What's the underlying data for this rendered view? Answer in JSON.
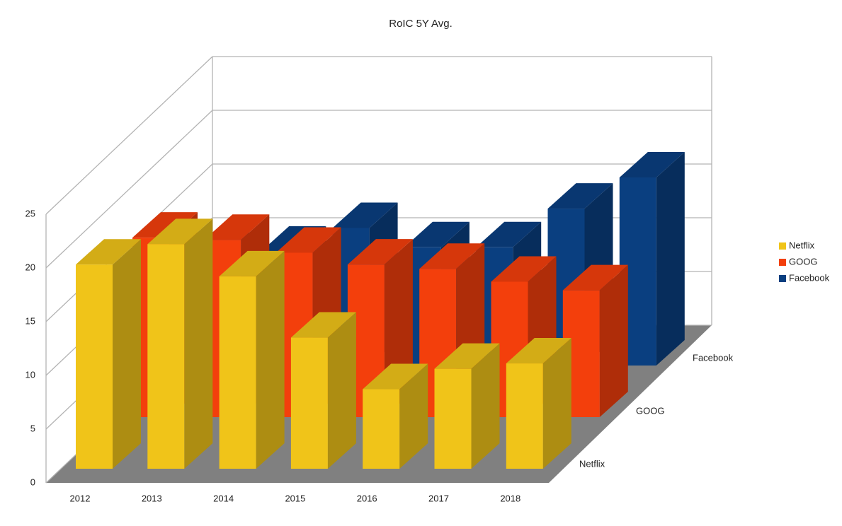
{
  "chart_data": {
    "type": "bar3d",
    "title": "RoIC 5Y Avg.",
    "categories": [
      "2012",
      "2013",
      "2014",
      "2015",
      "2016",
      "2017",
      "2018"
    ],
    "series": [
      {
        "name": "Netflix",
        "color": "#f0c419",
        "values": [
          19.0,
          20.9,
          17.9,
          12.2,
          7.4,
          9.3,
          9.8
        ]
      },
      {
        "name": "GOOG",
        "color": "#f33f0c",
        "values": [
          16.7,
          16.5,
          15.3,
          14.2,
          13.8,
          12.6,
          11.8
        ]
      },
      {
        "name": "Facebook",
        "color": "#0a3f80",
        "values": [
          10,
          10.6,
          12.8,
          11,
          11,
          14.6,
          17.5
        ]
      }
    ],
    "ylim": [
      0,
      25
    ],
    "yticks": [
      0,
      5,
      10,
      15,
      20,
      25
    ],
    "grid": true,
    "legend": "right"
  }
}
